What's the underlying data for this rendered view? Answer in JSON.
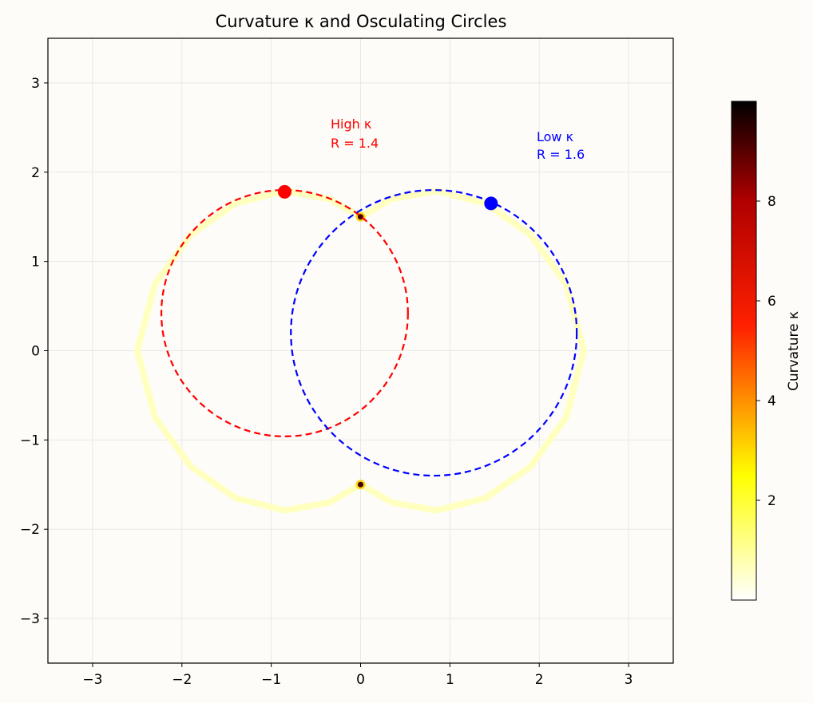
{
  "chart_data": {
    "type": "scatter",
    "title": "Curvature κ and Osculating Circles",
    "xlabel": "",
    "ylabel": "",
    "xlim": [
      -3.5,
      3.5
    ],
    "ylim": [
      -3.5,
      3.5
    ],
    "x_ticks": [
      "−3",
      "−2",
      "−1",
      "0",
      "1",
      "2",
      "3"
    ],
    "x_tick_values": [
      -3,
      -2,
      -1,
      0,
      1,
      2,
      3
    ],
    "y_ticks": [
      "−3",
      "−2",
      "−1",
      "0",
      "1",
      "2",
      "3"
    ],
    "y_tick_values": [
      -3,
      -2,
      -1,
      0,
      1,
      2,
      3
    ],
    "grid": true,
    "curve": {
      "description": "closed curve colored by curvature",
      "points": [
        [
          0.0,
          1.5
        ],
        [
          -0.35,
          1.7
        ],
        [
          -0.85,
          1.79
        ],
        [
          -1.4,
          1.65
        ],
        [
          -1.9,
          1.3
        ],
        [
          -2.3,
          0.75
        ],
        [
          -2.5,
          0.0
        ],
        [
          -2.3,
          -0.75
        ],
        [
          -1.9,
          -1.3
        ],
        [
          -1.4,
          -1.65
        ],
        [
          -0.85,
          -1.79
        ],
        [
          -0.35,
          -1.7
        ],
        [
          0.0,
          -1.5
        ],
        [
          0.35,
          -1.7
        ],
        [
          0.85,
          -1.79
        ],
        [
          1.4,
          -1.65
        ],
        [
          1.9,
          -1.3
        ],
        [
          2.3,
          -0.75
        ],
        [
          2.5,
          0.0
        ],
        [
          2.3,
          0.75
        ],
        [
          1.9,
          1.3
        ],
        [
          1.4,
          1.65
        ],
        [
          0.85,
          1.79
        ],
        [
          0.35,
          1.7
        ]
      ],
      "cusps": [
        [
          0.0,
          1.5
        ],
        [
          0.0,
          -1.5
        ]
      ]
    },
    "osculating_circles": [
      {
        "label": "High κ",
        "radius_label": "R = 1.4",
        "point": [
          -0.85,
          1.78
        ],
        "center": [
          -0.85,
          0.42
        ],
        "radius": 1.38,
        "color": "#ff0000"
      },
      {
        "label": "Low κ",
        "radius_label": "R = 1.6",
        "point": [
          1.46,
          1.65
        ],
        "center": [
          0.82,
          0.2
        ],
        "radius": 1.6,
        "color": "#0000ff"
      }
    ],
    "colorbar": {
      "label": "Curvature κ",
      "cmap": "hot_r",
      "range": [
        0,
        10
      ],
      "ticks": [
        2,
        4,
        6,
        8
      ],
      "tick_labels": [
        "2",
        "4",
        "6",
        "8"
      ]
    }
  },
  "colors": {
    "background": "#fdfcf8",
    "curve_low": "#ffffc0",
    "high_color": "#ff0000",
    "low_color": "#0000ff"
  }
}
